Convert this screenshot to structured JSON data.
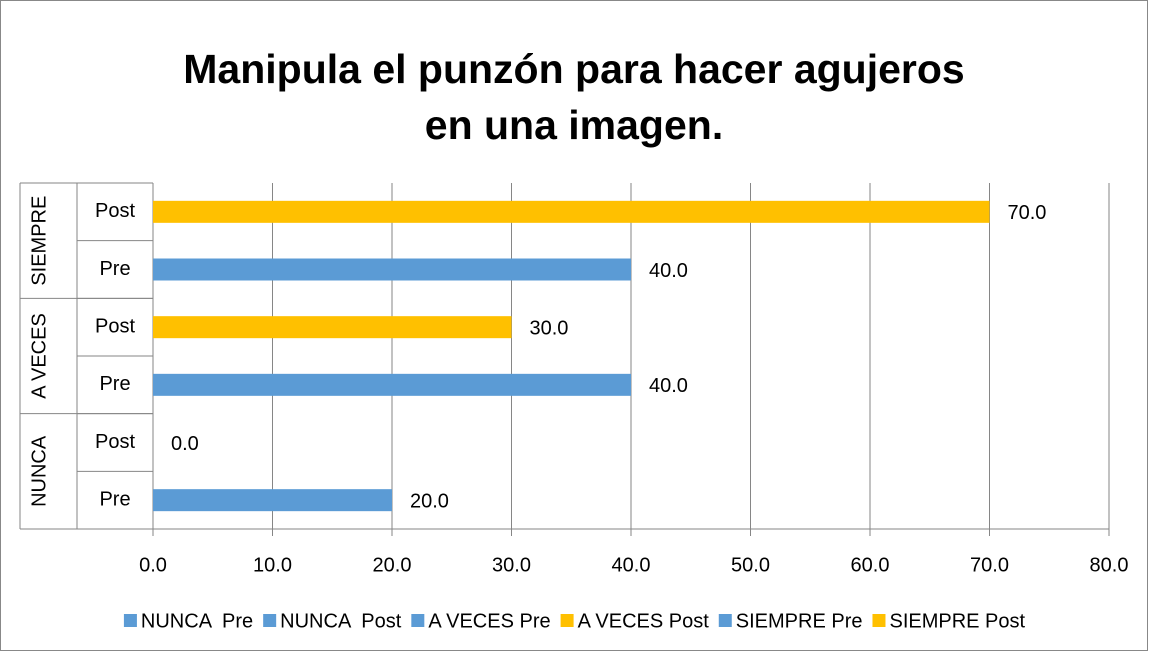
{
  "chart_data": {
    "type": "bar",
    "orientation": "horizontal",
    "title": "Manipula el punzón para hacer agujeros en una imagen.",
    "groups": [
      "NUNCA",
      "A VECES",
      "SIEMPRE"
    ],
    "categories": [
      "Pre",
      "Post",
      "Pre",
      "Post",
      "Pre",
      "Post"
    ],
    "series": [
      {
        "name": "NUNCA  Pre",
        "color": "#5b9bd5",
        "values": [
          20,
          null,
          null,
          null,
          null,
          null
        ],
        "value_labels": [
          "20.0",
          null,
          null,
          null,
          null,
          null
        ]
      },
      {
        "name": "NUNCA  Post",
        "color": "#5b9bd5",
        "values": [
          null,
          0,
          null,
          null,
          null,
          null
        ],
        "value_labels": [
          null,
          "0.0",
          null,
          null,
          null,
          null
        ]
      },
      {
        "name": "A VECES Pre",
        "color": "#5b9bd5",
        "values": [
          null,
          null,
          40,
          null,
          null,
          null
        ],
        "value_labels": [
          null,
          null,
          "40.0",
          null,
          null,
          null
        ]
      },
      {
        "name": "A VECES Post",
        "color": "#ffc000",
        "values": [
          null,
          null,
          null,
          30,
          null,
          null
        ],
        "value_labels": [
          null,
          null,
          null,
          "30.0",
          null,
          null
        ]
      },
      {
        "name": "SIEMPRE Pre",
        "color": "#5b9bd5",
        "values": [
          null,
          null,
          null,
          null,
          40,
          null
        ],
        "value_labels": [
          null,
          null,
          null,
          null,
          "40.0",
          null
        ]
      },
      {
        "name": "SIEMPRE Post",
        "color": "#ffc000",
        "values": [
          null,
          null,
          null,
          null,
          null,
          70
        ],
        "value_labels": [
          null,
          null,
          null,
          null,
          null,
          "70.0"
        ]
      }
    ],
    "xlim": [
      0,
      80
    ],
    "xticks": [
      {
        "value": 0,
        "label": "0.0"
      },
      {
        "value": 10,
        "label": "10.0"
      },
      {
        "value": 20,
        "label": "20.0"
      },
      {
        "value": 30,
        "label": "30.0"
      },
      {
        "value": 40,
        "label": "40.0"
      },
      {
        "value": 50,
        "label": "50.0"
      },
      {
        "value": 60,
        "label": "60.0"
      },
      {
        "value": 70,
        "label": "70.0"
      },
      {
        "value": 80,
        "label": "80.0"
      }
    ],
    "grid": true,
    "legend": "bottom"
  }
}
